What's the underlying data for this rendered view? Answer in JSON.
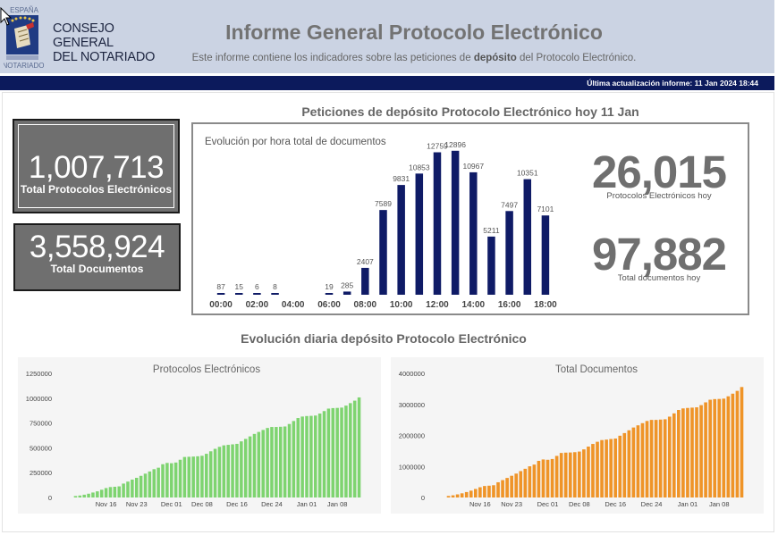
{
  "header": {
    "logo_top_text": "ESPAÑA",
    "logo_bottom_text": "NOTARIADO",
    "org_line1": "CONSEJO GENERAL",
    "org_line2": "DEL NOTARIADO",
    "title": "Informe General Protocolo Electrónico",
    "subtitle_pre": "Este informe contiene los indicadores sobre las peticiones de",
    "subtitle_bold": "depósito",
    "subtitle_post": "del Protocolo Electrónico."
  },
  "update_bar": {
    "text": "Última actualización informe: 11 Jan 2024 18:44"
  },
  "today_section": {
    "title": "Peticiones de depósito Protocolo Electrónico hoy 11 Jan"
  },
  "kpis": {
    "protocols_total": {
      "value": "1,007,713",
      "label": "Total Protocolos Electrónicos"
    },
    "documents_total": {
      "value": "3,558,924",
      "label": "Total Documentos"
    },
    "protocols_today": {
      "value": "26,015",
      "label": "Protocolos Electrónicos hoy"
    },
    "documents_today": {
      "value": "97,882",
      "label": "Total documentos hoy"
    }
  },
  "daily_section": {
    "title": "Evolución diaria depósito Protocolo Electrónico"
  },
  "colors": {
    "navy": "#0f1b66",
    "green": "#7ed470",
    "orange": "#ef9428",
    "gray": "#6f6f6f"
  },
  "chart_data": [
    {
      "type": "bar",
      "title": "Evolución por hora total de documentos",
      "x_hours": [
        0,
        1,
        2,
        3,
        6,
        7,
        8,
        9,
        10,
        11,
        12,
        13,
        14,
        15,
        16,
        17,
        18
      ],
      "values": [
        87,
        15,
        6,
        8,
        19,
        285,
        2407,
        7589,
        9831,
        10853,
        12759,
        12896,
        10967,
        5211,
        7497,
        10351,
        7101
      ],
      "labels": [
        "87",
        "15",
        "6",
        "8",
        "19",
        "285",
        "2407",
        "7589",
        "9831",
        "10853",
        "12759",
        "12896",
        "10967",
        "5211",
        "7497",
        "10351",
        "7101"
      ],
      "xtick_labels": [
        "00:00",
        "02:00",
        "04:00",
        "06:00",
        "08:00",
        "10:00",
        "12:00",
        "14:00",
        "16:00",
        "18:00"
      ],
      "xtick_hours": [
        0,
        2,
        4,
        6,
        8,
        10,
        12,
        14,
        16,
        18
      ],
      "xlim": [
        -0.5,
        18.5
      ],
      "ylim": [
        0,
        13200
      ],
      "grid": false
    },
    {
      "type": "bar",
      "title": "Protocolos Electrónicos",
      "x_day_start": 0,
      "values": [
        15000,
        20000,
        28000,
        38000,
        50000,
        62000,
        78000,
        95000,
        105000,
        108000,
        112000,
        140000,
        160000,
        180000,
        198000,
        218000,
        240000,
        262000,
        285000,
        300000,
        335000,
        348000,
        345000,
        352000,
        380000,
        408000,
        410000,
        412000,
        415000,
        420000,
        440000,
        465000,
        490000,
        510000,
        525000,
        530000,
        535000,
        540000,
        565000,
        590000,
        615000,
        640000,
        660000,
        680000,
        700000,
        710000,
        710000,
        712000,
        715000,
        740000,
        770000,
        800000,
        815000,
        820000,
        822000,
        825000,
        845000,
        870000,
        895000,
        900000,
        902000,
        905000,
        925000,
        950000,
        975000,
        1007713
      ],
      "xtick_labels": [
        "Nov 16",
        "Nov 23",
        "Dec 01",
        "Dec 08",
        "Dec 16",
        "Dec 24",
        "Jan 01",
        "Jan 08"
      ],
      "xtick_days": [
        7,
        14,
        22,
        29,
        37,
        45,
        53,
        60
      ],
      "ytick_labels": [
        "0",
        "250000",
        "500000",
        "750000",
        "1000000",
        "1250000"
      ],
      "ytick_values": [
        0,
        250000,
        500000,
        750000,
        1000000,
        1250000
      ],
      "ylim": [
        0,
        1250000
      ],
      "n_days": 66,
      "grid": false
    },
    {
      "type": "bar",
      "title": "Total Documentos",
      "x_day_start": 0,
      "values": [
        50000,
        70000,
        100000,
        135000,
        175000,
        220000,
        275000,
        330000,
        370000,
        380000,
        395000,
        490000,
        560000,
        630000,
        700000,
        770000,
        850000,
        925000,
        1005000,
        1060000,
        1180000,
        1225000,
        1215000,
        1240000,
        1340000,
        1435000,
        1445000,
        1450000,
        1460000,
        1480000,
        1550000,
        1640000,
        1725000,
        1795000,
        1850000,
        1865000,
        1885000,
        1900000,
        1990000,
        2075000,
        2165000,
        2255000,
        2325000,
        2395000,
        2465000,
        2500000,
        2500000,
        2510000,
        2520000,
        2605000,
        2710000,
        2820000,
        2870000,
        2885000,
        2895000,
        2905000,
        2975000,
        3065000,
        3150000,
        3170000,
        3175000,
        3185000,
        3260000,
        3345000,
        3435000,
        3558924
      ],
      "xtick_labels": [
        "Nov 16",
        "Nov 23",
        "Dec 01",
        "Dec 08",
        "Dec 16",
        "Dec 24",
        "Jan 01",
        "Jan 08"
      ],
      "xtick_days": [
        7,
        14,
        22,
        29,
        37,
        45,
        53,
        60
      ],
      "ytick_labels": [
        "0",
        "1000000",
        "2000000",
        "3000000",
        "4000000"
      ],
      "ytick_values": [
        0,
        1000000,
        2000000,
        3000000,
        4000000
      ],
      "ylim": [
        0,
        4000000
      ],
      "n_days": 66,
      "grid": false
    }
  ]
}
